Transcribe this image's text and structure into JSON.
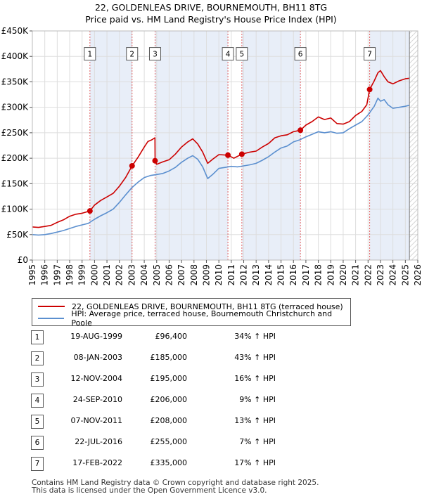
{
  "title_line1": "22, GOLDENLEAS DRIVE, BOURNEMOUTH, BH11 8TG",
  "title_line2": "Price paid vs. HM Land Registry's House Price Index (HPI)",
  "colors": {
    "property": "#cc0000",
    "hpi": "#5b8fcf",
    "band": "#e8eef8",
    "vline": "#e06060",
    "grid": "#dddddd"
  },
  "legend": {
    "property": "22, GOLDENLEAS DRIVE, BOURNEMOUTH, BH11 8TG (terraced house)",
    "hpi": "HPI: Average price, terraced house, Bournemouth Christchurch and Poole"
  },
  "sales": [
    {
      "id": "1",
      "date": "19-AUG-1999",
      "price": "£96,400",
      "hpi": "34% ↑ HPI"
    },
    {
      "id": "2",
      "date": "08-JAN-2003",
      "price": "£185,000",
      "hpi": "43% ↑ HPI"
    },
    {
      "id": "3",
      "date": "12-NOV-2004",
      "price": "£195,000",
      "hpi": "16% ↑ HPI"
    },
    {
      "id": "4",
      "date": "24-SEP-2010",
      "price": "£206,000",
      "hpi": "9% ↑ HPI"
    },
    {
      "id": "5",
      "date": "07-NOV-2011",
      "price": "£208,000",
      "hpi": "13% ↑ HPI"
    },
    {
      "id": "6",
      "date": "22-JUL-2016",
      "price": "£255,000",
      "hpi": "7% ↑ HPI"
    },
    {
      "id": "7",
      "date": "17-FEB-2022",
      "price": "£335,000",
      "hpi": "17% ↑ HPI"
    }
  ],
  "footer_line1": "Contains HM Land Registry data © Crown copyright and database right 2025.",
  "footer_line2": "This data is licensed under the Open Government Licence v3.0.",
  "chart_data": {
    "type": "line",
    "title": "22, GOLDENLEAS DRIVE, BOURNEMOUTH, BH11 8TG — Price paid vs. HM Land Registry's House Price Index (HPI)",
    "xlabel": "",
    "ylabel": "",
    "xlim": [
      1995,
      2026
    ],
    "ylim": [
      0,
      450000
    ],
    "x_ticks": [
      "1995",
      "1996",
      "1997",
      "1998",
      "1999",
      "2000",
      "2001",
      "2002",
      "2003",
      "2004",
      "2005",
      "2006",
      "2007",
      "2008",
      "2009",
      "2010",
      "2011",
      "2012",
      "2013",
      "2014",
      "2015",
      "2016",
      "2017",
      "2018",
      "2019",
      "2020",
      "2021",
      "2022",
      "2023",
      "2024",
      "2025",
      "2026"
    ],
    "y_ticks": [
      {
        "value": 0,
        "label": "£0"
      },
      {
        "value": 50000,
        "label": "£50K"
      },
      {
        "value": 100000,
        "label": "£100K"
      },
      {
        "value": 150000,
        "label": "£150K"
      },
      {
        "value": 200000,
        "label": "£200K"
      },
      {
        "value": 250000,
        "label": "£250K"
      },
      {
        "value": 300000,
        "label": "£300K"
      },
      {
        "value": 350000,
        "label": "£350K"
      },
      {
        "value": 400000,
        "label": "£400K"
      },
      {
        "value": 450000,
        "label": "£450K"
      }
    ],
    "grid": true,
    "future_hatch_from": 2025.33,
    "sale_markers": [
      {
        "label": "1",
        "x": 1999.63,
        "y": 96400
      },
      {
        "label": "2",
        "x": 2003.02,
        "y": 185000
      },
      {
        "label": "3",
        "x": 2004.87,
        "y": 195000
      },
      {
        "label": "4",
        "x": 2010.73,
        "y": 206000
      },
      {
        "label": "5",
        "x": 2011.85,
        "y": 208000
      },
      {
        "label": "6",
        "x": 2016.56,
        "y": 255000
      },
      {
        "label": "7",
        "x": 2022.13,
        "y": 335000
      }
    ],
    "shaded_pairs": [
      [
        1999.63,
        2003.02
      ],
      [
        2004.87,
        2010.73
      ],
      [
        2011.85,
        2016.56
      ],
      [
        2022.13,
        2025.33
      ]
    ],
    "marker_label_value": 405000,
    "series": [
      {
        "name": "22, GOLDENLEAS DRIVE, BOURNEMOUTH, BH11 8TG (terraced house)",
        "color": "#cc0000",
        "x": [
          1995,
          1995.5,
          1996,
          1996.5,
          1997,
          1997.5,
          1998,
          1998.5,
          1999,
          1999.63,
          2000,
          2000.5,
          2001,
          2001.5,
          2002,
          2002.5,
          2003.02,
          2003.5,
          2004,
          2004.3,
          2004.6,
          2004.86,
          2004.87,
          2005,
          2005.5,
          2006,
          2006.5,
          2007,
          2007.5,
          2007.9,
          2008.3,
          2008.7,
          2009.1,
          2009.5,
          2010,
          2010.73,
          2011.2,
          2011.85,
          2012.5,
          2013,
          2013.5,
          2014,
          2014.5,
          2015,
          2015.5,
          2016,
          2016.56,
          2017,
          2017.5,
          2018,
          2018.5,
          2019,
          2019.5,
          2020,
          2020.5,
          2021,
          2021.5,
          2021.9,
          2022.13,
          2022.5,
          2022.8,
          2023,
          2023.3,
          2023.6,
          2024,
          2024.5,
          2025,
          2025.3
        ],
        "y": [
          65000,
          64000,
          66000,
          68000,
          74000,
          79000,
          86000,
          90000,
          92000,
          96400,
          108000,
          117000,
          124000,
          131000,
          145000,
          162000,
          185000,
          202000,
          222000,
          233000,
          236000,
          240000,
          195000,
          188000,
          193000,
          197000,
          208000,
          222000,
          232000,
          238000,
          228000,
          212000,
          190000,
          198000,
          207000,
          206000,
          200000,
          208000,
          212000,
          214000,
          222000,
          229000,
          240000,
          244000,
          246000,
          252000,
          255000,
          265000,
          272000,
          281000,
          276000,
          279000,
          268000,
          267000,
          272000,
          284000,
          292000,
          305000,
          335000,
          352000,
          368000,
          372000,
          360000,
          350000,
          346000,
          352000,
          356000,
          357000
        ]
      },
      {
        "name": "HPI: Average price, terraced house, Bournemouth Christchurch and Poole",
        "color": "#5b8fcf",
        "x": [
          1995,
          1995.5,
          1996,
          1996.5,
          1997,
          1997.5,
          1998,
          1998.5,
          1999,
          1999.5,
          2000,
          2000.5,
          2001,
          2001.5,
          2002,
          2002.5,
          2003,
          2003.5,
          2004,
          2004.5,
          2005,
          2005.5,
          2006,
          2006.5,
          2007,
          2007.5,
          2007.9,
          2008.3,
          2008.7,
          2009.1,
          2009.5,
          2010,
          2010.5,
          2011,
          2011.5,
          2012,
          2012.5,
          2013,
          2013.5,
          2014,
          2014.5,
          2015,
          2015.5,
          2016,
          2016.5,
          2017,
          2017.5,
          2018,
          2018.5,
          2019,
          2019.5,
          2020,
          2020.5,
          2021,
          2021.5,
          2022,
          2022.5,
          2022.8,
          2023,
          2023.3,
          2023.6,
          2024,
          2024.5,
          2025,
          2025.3
        ],
        "y": [
          50000,
          49000,
          50000,
          52000,
          55000,
          58000,
          62000,
          66000,
          69000,
          72000,
          80000,
          87000,
          93000,
          100000,
          113000,
          128000,
          142000,
          153000,
          162000,
          166000,
          168000,
          170000,
          175000,
          182000,
          192000,
          200000,
          205000,
          198000,
          183000,
          160000,
          168000,
          180000,
          182000,
          184000,
          183000,
          185000,
          187000,
          190000,
          196000,
          203000,
          212000,
          220000,
          224000,
          232000,
          236000,
          242000,
          247000,
          252000,
          250000,
          252000,
          249000,
          250000,
          258000,
          265000,
          272000,
          285000,
          302000,
          318000,
          312000,
          315000,
          305000,
          298000,
          300000,
          302000,
          304000
        ]
      }
    ]
  }
}
